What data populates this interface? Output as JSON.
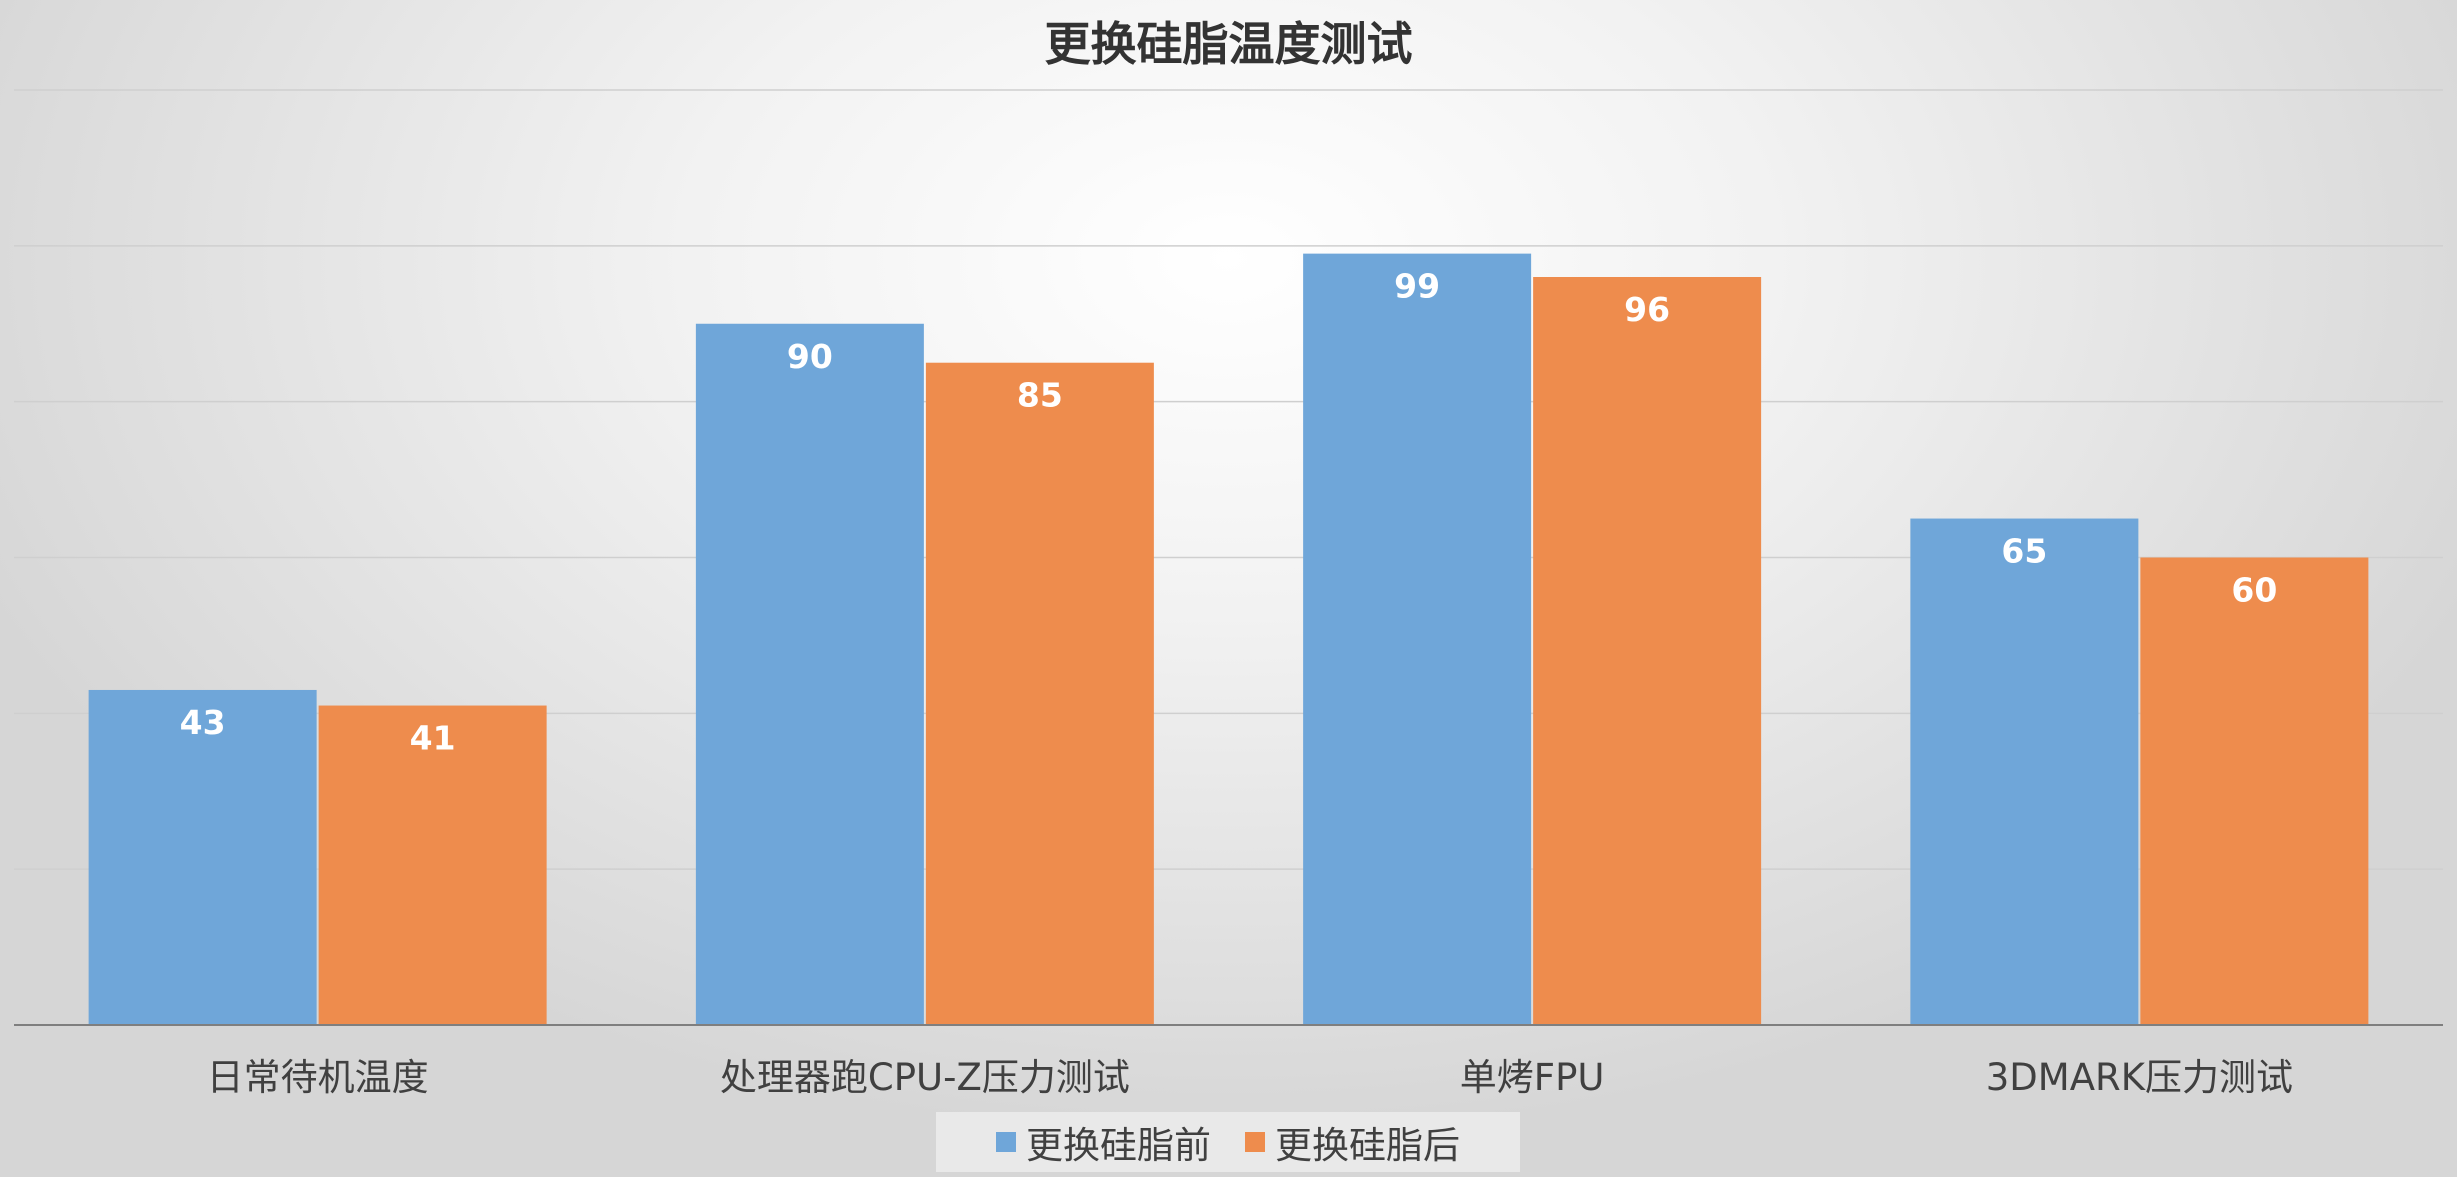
{
  "chart_data": {
    "type": "bar",
    "title": "更换硅脂温度测试",
    "categories": [
      "日常待机温度",
      "处理器跑CPU-Z压力测试",
      "单烤FPU",
      "3DMARK压力测试"
    ],
    "series": [
      {
        "name": "更换硅脂前",
        "values": [
          43,
          90,
          99,
          65
        ],
        "color": "#6fa6d9"
      },
      {
        "name": "更换硅脂后",
        "values": [
          41,
          85,
          96,
          60
        ],
        "color": "#ee8c4d"
      }
    ],
    "xlabel": "",
    "ylabel": "",
    "ylim": [
      0,
      120
    ],
    "grid": true,
    "legend_position": "bottom",
    "data_label_color": "#ffffff"
  }
}
